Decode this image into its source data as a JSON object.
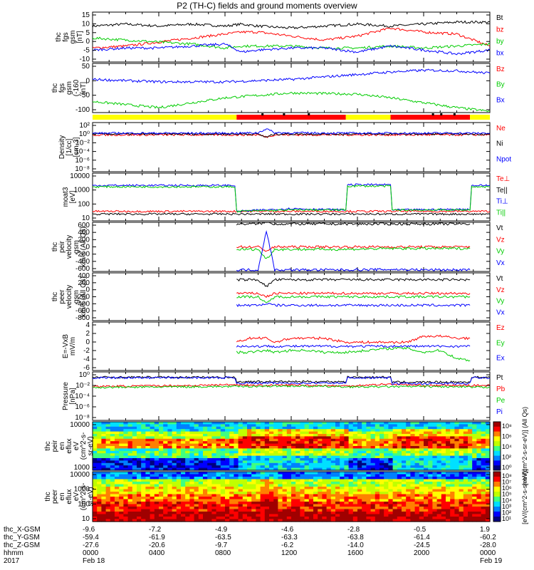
{
  "title": "P2 (TH-C) fields and ground moments overview",
  "colors": {
    "black": "#000000",
    "red": "#ff0000",
    "green": "#00cc00",
    "blue": "#0000ff",
    "yellow": "#ffff00"
  },
  "chart_data": [
    {
      "type": "line",
      "panel": "fgs-gsm",
      "ylabel": [
        "thc",
        "fgs",
        "gsm",
        "[nT]"
      ],
      "ylim": [
        -10,
        15
      ],
      "yticks": [
        "15",
        "10",
        "5",
        "0",
        "-5",
        "-10"
      ],
      "series": [
        {
          "name": "Bt",
          "color": "#000000",
          "hours": [
            0,
            2,
            4,
            6,
            8,
            9,
            10,
            12,
            14,
            16,
            18,
            20,
            22,
            24
          ],
          "values": [
            8,
            9,
            8,
            9,
            8,
            9,
            8,
            7,
            8,
            9,
            8,
            9,
            10,
            10
          ]
        },
        {
          "name": "bz",
          "color": "#ff0000",
          "hours": [
            0,
            2,
            4,
            6,
            8,
            9,
            10,
            12,
            14,
            16,
            18,
            20,
            22,
            24
          ],
          "values": [
            -3,
            -2,
            0,
            2,
            4,
            5,
            5,
            3,
            1,
            3,
            7,
            5,
            4,
            -2
          ]
        },
        {
          "name": "by",
          "color": "#00cc00",
          "hours": [
            0,
            2,
            4,
            6,
            8,
            9,
            10,
            12,
            14,
            16,
            18,
            20,
            22,
            24
          ],
          "values": [
            2,
            1,
            0,
            -1,
            -3,
            -2,
            -2,
            -2,
            -3,
            -3,
            -2,
            -3,
            -2,
            -1
          ]
        },
        {
          "name": "bx",
          "color": "#0000ff",
          "hours": [
            0,
            2,
            4,
            6,
            8,
            9,
            10,
            12,
            14,
            16,
            18,
            20,
            22,
            24
          ],
          "values": [
            -4,
            -3,
            -3,
            -2,
            -1,
            -5,
            -4,
            -3,
            -3,
            -5,
            -2,
            -4,
            -6,
            -4
          ]
        }
      ]
    },
    {
      "type": "line",
      "panel": "fgs-gsm-tail",
      "ylabel": [
        "thc",
        "fgs",
        "gsm",
        "(-160",
        "[nT]"
      ],
      "ylim": [
        -120,
        80
      ],
      "yticks": [
        "50",
        "0",
        "-50",
        "-100"
      ],
      "series": [
        {
          "name": "Bz",
          "color": "#ff0000",
          "hours": [],
          "values": []
        },
        {
          "name": "By",
          "color": "#00cc00",
          "hours": [
            0,
            4,
            8,
            12,
            16,
            18,
            20,
            22,
            24
          ],
          "values": [
            -75,
            -100,
            -60,
            -40,
            -45,
            -60,
            -80,
            -100,
            -115
          ]
        },
        {
          "name": "Bx",
          "color": "#0000ff",
          "hours": [
            0,
            4,
            8,
            12,
            16,
            18,
            20,
            22,
            24
          ],
          "values": [
            15,
            5,
            5,
            15,
            35,
            45,
            52,
            50,
            40
          ]
        }
      ]
    },
    {
      "type": "bar",
      "panel": "mode-bar",
      "segments": [
        {
          "start": 0,
          "end": 8.7,
          "color": "#ffff00"
        },
        {
          "start": 8.7,
          "end": 15.3,
          "color": "#ff0000"
        },
        {
          "start": 15.3,
          "end": 18.0,
          "color": "#ffff00"
        },
        {
          "start": 18.0,
          "end": 22.8,
          "color": "#ff0000"
        },
        {
          "start": 22.8,
          "end": 24,
          "color": "#ffff00"
        }
      ]
    },
    {
      "type": "line",
      "panel": "density",
      "log": true,
      "ylabel": [
        "Density",
        "[1/cc]",
        "[cm-3]"
      ],
      "ylim": [
        -9,
        3
      ],
      "yticks": [
        "10²",
        "10⁰",
        "10⁻²",
        "10⁻⁴",
        "10⁻⁶",
        "10⁻⁸"
      ],
      "series": [
        {
          "name": "Ne",
          "color": "#ff0000",
          "hours": [
            0,
            8.7,
            9,
            10,
            10.5,
            11,
            12,
            16,
            20,
            24
          ],
          "values": [
            0,
            0,
            0,
            0,
            -0.5,
            0,
            0,
            0,
            0,
            0
          ]
        },
        {
          "name": "Ni",
          "color": "#000000",
          "hours": [
            0,
            8.7,
            10,
            10.5,
            11,
            16,
            20,
            24
          ],
          "values": [
            0.2,
            0.2,
            0.2,
            -0.6,
            0.2,
            0.2,
            0.2,
            0.2
          ]
        },
        {
          "name": "Npot",
          "color": "#0000ff",
          "hours": [
            0,
            8.7,
            10,
            10.5,
            11,
            16,
            20,
            24
          ],
          "values": [
            0.4,
            0.4,
            0.5,
            1.5,
            0.5,
            0.4,
            0.4,
            0.4
          ]
        }
      ]
    },
    {
      "type": "line",
      "panel": "temperature",
      "log": true,
      "ylabel": [
        "moat3",
        "[eV]"
      ],
      "ylim": [
        0.5,
        4
      ],
      "yticks": [
        "10000",
        "1000",
        "100",
        "10"
      ],
      "series": [
        {
          "name": "Te⊥",
          "color": "#ff0000",
          "hours": [
            0,
            8.7,
            24
          ],
          "values": [
            1.2,
            1.2,
            1.2
          ]
        },
        {
          "name": "Te||",
          "color": "#000000",
          "hours": [
            0,
            8.7,
            24
          ],
          "values": [
            1.0,
            1.0,
            1.0
          ]
        },
        {
          "name": "Ti⊥",
          "color": "#0000ff",
          "hours": [
            0,
            8.6,
            8.7,
            12,
            15.3,
            15.4,
            18.0,
            18.1,
            22.8,
            22.9,
            24
          ],
          "values": [
            3.1,
            3.1,
            1.2,
            1.4,
            1.3,
            3.15,
            3.15,
            1.3,
            1.35,
            3.1,
            3.1
          ]
        },
        {
          "name": "Ti||",
          "color": "#00cc00",
          "hours": [
            0,
            8.6,
            8.7,
            12,
            15.3,
            15.4,
            18.0,
            18.1,
            22.8,
            22.9,
            24
          ],
          "values": [
            3.0,
            3.0,
            1.2,
            1.3,
            1.3,
            3.05,
            3.05,
            1.3,
            1.3,
            3.0,
            3.0
          ]
        }
      ]
    },
    {
      "type": "line",
      "panel": "peir-velocity",
      "ylabel": [
        "thc",
        "peir",
        "velocity",
        "gsm",
        "km/s (All Qs)"
      ],
      "ylim": [
        -600,
        600
      ],
      "yticks": [
        "600",
        "400",
        "200",
        "0",
        "-200",
        "-400",
        "-600"
      ],
      "series": [
        {
          "name": "Vt",
          "color": "#000000",
          "hours": [
            8.7,
            10,
            10.5,
            11,
            15.3,
            18.0,
            20,
            22.8
          ],
          "values": [
            560,
            560,
            600,
            560,
            560,
            560,
            560,
            560
          ]
        },
        {
          "name": "Vz",
          "color": "#ff0000",
          "hours": [
            8.7,
            10,
            10.5,
            11,
            15.3,
            18.0,
            20,
            22.8
          ],
          "values": [
            0,
            0,
            -100,
            0,
            0,
            0,
            0,
            0
          ]
        },
        {
          "name": "Vy",
          "color": "#00cc00",
          "hours": [
            8.7,
            10,
            10.5,
            11,
            15.3,
            18.0,
            20,
            22.8
          ],
          "values": [
            -60,
            -60,
            -300,
            -60,
            -60,
            -40,
            -40,
            -40
          ]
        },
        {
          "name": "Vx",
          "color": "#0000ff",
          "hours": [
            8.7,
            10,
            10.5,
            11,
            15.3,
            18.0,
            20,
            22.8
          ],
          "values": [
            -560,
            -560,
            400,
            -560,
            -560,
            -550,
            -560,
            -560
          ]
        }
      ]
    },
    {
      "type": "line",
      "panel": "peer-velocity",
      "ylabel": [
        "thc",
        "peer",
        "velocity",
        "gsm",
        "km/s (All Qs)"
      ],
      "ylim": [
        -800,
        600
      ],
      "yticks": [
        "400",
        "200",
        "0",
        "-200",
        "-400",
        "-600",
        "-800"
      ],
      "series": [
        {
          "name": "Vt",
          "color": "#000000",
          "hours": [
            8.7,
            10,
            10.5,
            11,
            15.3,
            18.0,
            20,
            22.8
          ],
          "values": [
            400,
            400,
            200,
            400,
            400,
            400,
            400,
            400
          ]
        },
        {
          "name": "Vz",
          "color": "#ff0000",
          "hours": [
            8.7,
            10,
            10.5,
            11,
            15.3,
            18.0,
            20,
            22.8
          ],
          "values": [
            0,
            0,
            -100,
            0,
            0,
            0,
            0,
            0
          ]
        },
        {
          "name": "Vy",
          "color": "#00cc00",
          "hours": [
            8.7,
            10,
            10.5,
            11,
            15.3,
            18.0,
            20,
            22.8
          ],
          "values": [
            -100,
            -100,
            -300,
            -100,
            -100,
            -100,
            -100,
            -100
          ]
        },
        {
          "name": "Vx",
          "color": "#0000ff",
          "hours": [
            8.7,
            10,
            10.5,
            11,
            15.3,
            18.0,
            20,
            22.8
          ],
          "values": [
            -350,
            -350,
            -300,
            -350,
            -350,
            -350,
            -350,
            -350
          ]
        }
      ]
    },
    {
      "type": "line",
      "panel": "efield",
      "ylabel": [
        "E=-VxB",
        "mV/m"
      ],
      "ylim": [
        -6,
        6
      ],
      "yticks": [
        "4",
        "2",
        "0",
        "-2",
        "-4",
        "-6"
      ],
      "series": [
        {
          "name": "Ez",
          "color": "#ff0000",
          "hours": [
            8.7,
            9.5,
            10.5,
            11,
            12,
            13,
            14,
            15.3,
            18.0,
            19,
            20,
            21,
            22,
            22.8
          ],
          "values": [
            1,
            2,
            2,
            1,
            2,
            2,
            2,
            1,
            1,
            1,
            2.5,
            2.5,
            2,
            2
          ]
        },
        {
          "name": "Ey",
          "color": "#00cc00",
          "hours": [
            8.7,
            9.5,
            10.5,
            11,
            12,
            13,
            14,
            15.3,
            18.0,
            19,
            20,
            21,
            22,
            22.8
          ],
          "values": [
            -1.5,
            -1.5,
            -1,
            -1.5,
            -1,
            -1,
            -1.5,
            -1.5,
            -0.5,
            -0.5,
            -1.5,
            -1,
            -3,
            -3.5
          ]
        },
        {
          "name": "Ex",
          "color": "#0000ff",
          "hours": [
            8.7,
            15.3,
            18.0,
            22.8
          ],
          "values": [
            0,
            0,
            0,
            0
          ]
        }
      ]
    },
    {
      "type": "line",
      "panel": "pressure",
      "log": true,
      "ylabel": [
        "Pressure",
        "[nPa]"
      ],
      "ylim": [
        -9,
        1
      ],
      "yticks": [
        "10⁰",
        "10⁻²",
        "10⁻⁴",
        "10⁻⁶",
        "10⁻⁸"
      ],
      "series": [
        {
          "name": "Pt",
          "color": "#000000",
          "hours": [
            0,
            8.6,
            8.7,
            15.3,
            15.4,
            18.0,
            18.1,
            22.8,
            22.9,
            24
          ],
          "values": [
            -0.1,
            -0.1,
            -1.0,
            -1.0,
            -0.1,
            -0.1,
            -1.1,
            -1.1,
            -0.1,
            -0.1
          ]
        },
        {
          "name": "Pb",
          "color": "#ff0000",
          "hours": [
            0,
            6,
            8.7,
            10,
            12,
            15.3,
            18,
            20,
            24
          ],
          "values": [
            -2.0,
            -1.8,
            -1.6,
            -1.8,
            -1.7,
            -1.9,
            -1.5,
            -1.8,
            -1.8
          ]
        },
        {
          "name": "Pe",
          "color": "#00cc00",
          "hours": [
            0,
            8.7,
            12,
            16,
            20,
            24
          ],
          "values": [
            -2.2,
            -2.0,
            -1.9,
            -2.1,
            -2.0,
            -2.2
          ]
        },
        {
          "name": "Pi",
          "color": "#0000ff",
          "hours": [
            0,
            8.6,
            8.7,
            15.3,
            15.4,
            18.0,
            18.1,
            22.8,
            22.9,
            24
          ],
          "values": [
            -0.2,
            -0.2,
            -1.3,
            -1.3,
            -0.2,
            -0.2,
            -1.4,
            -1.4,
            -0.2,
            -0.2
          ]
        }
      ]
    },
    {
      "type": "heatmap",
      "panel": "peir-spectrogram",
      "ylabel": [
        "thc",
        "peir",
        "en",
        "eflux",
        "eV",
        "(cm^2-s-",
        "sr-eV)"
      ],
      "yticks": [
        "10000",
        "1000"
      ],
      "colorbar_ticks": [
        "10⁸",
        "10⁶",
        "10⁴",
        "10²",
        "10⁰"
      ],
      "colorbar_label": "[eV/(cm^2-s-sr-eV)] (All Qs)"
    },
    {
      "type": "heatmap",
      "panel": "peer-spectrogram",
      "ylabel": [
        "thc",
        "peer",
        "en",
        "eflux",
        "eV",
        "(cm^2-s-",
        "sr-eV)"
      ],
      "yticks": [
        "10000",
        "1000",
        "100",
        "10"
      ],
      "colorbar_ticks": [
        "10⁸",
        "10⁷",
        "10⁶",
        "10⁵",
        "10⁴",
        "10³",
        "10²",
        "10¹"
      ],
      "colorbar_label": "[eV/(cm^2-s-sr-eV)]"
    }
  ],
  "footer": {
    "row_labels": [
      "thc_X-GSM",
      "thc_Y-GSM",
      "thc_Z-GSM",
      "hhmm",
      "2017"
    ],
    "columns": [
      [
        "-9.6",
        "-59.4",
        "-27.6",
        "0000",
        "Feb 18"
      ],
      [
        "-7.2",
        "-61.9",
        "-20.6",
        "0400",
        ""
      ],
      [
        "-4.9",
        "-63.5",
        "-9.7",
        "0800",
        ""
      ],
      [
        "-4.6",
        "-63.3",
        "-6.2",
        "1200",
        ""
      ],
      [
        "-2.8",
        "-63.8",
        "-14.0",
        "1600",
        ""
      ],
      [
        "-0.5",
        "-61.4",
        "-24.5",
        "2000",
        ""
      ],
      [
        "1.9",
        "-60.2",
        "-28.0",
        "0000",
        "Feb 19"
      ]
    ]
  }
}
